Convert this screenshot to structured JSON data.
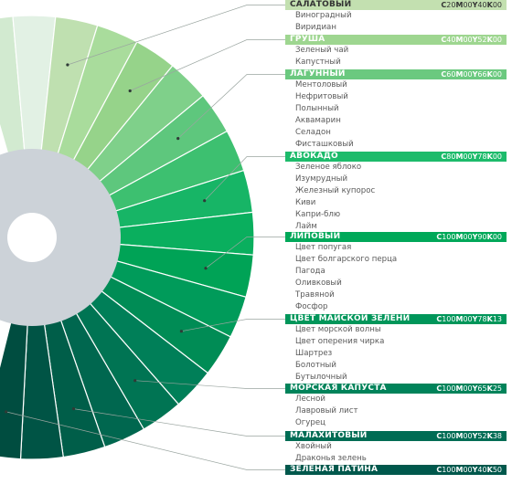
{
  "groups": [
    {
      "name": "САЛАТОВЫЙ",
      "cmyk": {
        "c": "20",
        "m": "00",
        "y": "40",
        "k": "00"
      },
      "color": "#c3e0b0",
      "text_color": "#333333",
      "wedge_colors": [
        "#bfe0b0"
      ],
      "items": [
        "Виноградный",
        "Виридиан"
      ]
    },
    {
      "name": "ГРУША",
      "cmyk": {
        "c": "40",
        "m": "00",
        "y": "52",
        "k": "00"
      },
      "color": "#9ed690",
      "text_color": "#ffffff",
      "wedge_colors": [
        "#a9dc9c",
        "#96d38a"
      ],
      "items": [
        "Зеленый чай",
        "Капустный"
      ]
    },
    {
      "name": "ЛАГУННЫЙ",
      "cmyk": {
        "c": "60",
        "m": "00",
        "y": "66",
        "k": "00"
      },
      "color": "#6bc97f",
      "text_color": "#ffffff",
      "wedge_colors": [
        "#7fd08a",
        "#5ec77d"
      ],
      "items": [
        "Ментоловый",
        "Нефритовый",
        "Полынный",
        "Аквамарин",
        "Селадон",
        "Фисташковый"
      ]
    },
    {
      "name": "АВОКАДО",
      "cmyk": {
        "c": "80",
        "m": "00",
        "y": "78",
        "k": "00"
      },
      "color": "#1dbb6b",
      "text_color": "#ffffff",
      "wedge_colors": [
        "#3dc070",
        "#17b566"
      ],
      "items": [
        "Зеленое яблоко",
        "Изумрудный",
        "Железный купорос",
        "Киви",
        "Капри-блю",
        "Лайм"
      ]
    },
    {
      "name": "ЛИПОВЫЙ",
      "cmyk": {
        "c": "100",
        "m": "00",
        "y": "90",
        "k": "00"
      },
      "color": "#00a859",
      "text_color": "#ffffff",
      "wedge_colors": [
        "#0aaf5e",
        "#00a356"
      ],
      "items": [
        "Цвет попугая",
        "Цвет болгарского перца",
        "Пагода",
        "Оливковый",
        "Травяной",
        "Фосфор"
      ]
    },
    {
      "name": "ЦВЕТ МАЙСКОЙ ЗЕЛЕНИ",
      "cmyk": {
        "c": "100",
        "m": "00",
        "y": "78",
        "k": "13"
      },
      "color": "#00965a",
      "text_color": "#ffffff",
      "wedge_colors": [
        "#009b5a",
        "#008c55"
      ],
      "items": [
        "Цвет морской волны",
        "Цвет оперения чирка",
        "Шартрез",
        "Болотный",
        "Бутылочный"
      ]
    },
    {
      "name": "МОРСКАЯ КАПУСТА",
      "cmyk": {
        "c": "100",
        "m": "00",
        "y": "65",
        "k": "25"
      },
      "color": "#00835a",
      "text_color": "#ffffff",
      "wedge_colors": [
        "#007f58",
        "#007453"
      ],
      "items": [
        "Лесной",
        "Лавровый лист",
        "Огурец"
      ]
    },
    {
      "name": "МАЛАХИТОВЫЙ",
      "cmyk": {
        "c": "100",
        "m": "00",
        "y": "52",
        "k": "38"
      },
      "color": "#006c54",
      "text_color": "#ffffff",
      "wedge_colors": [
        "#00674f",
        "#005e49"
      ],
      "items": [
        "Хвойный",
        "Драконья зелень"
      ]
    },
    {
      "name": "ЗЕЛЕНАЯ ПАТИНА",
      "cmyk": {
        "c": "100",
        "m": "00",
        "y": "40",
        "k": "50"
      },
      "color": "#00584c",
      "text_color": "#ffffff",
      "wedge_colors": [
        "#005445",
        "#004d40"
      ],
      "items": []
    }
  ]
}
